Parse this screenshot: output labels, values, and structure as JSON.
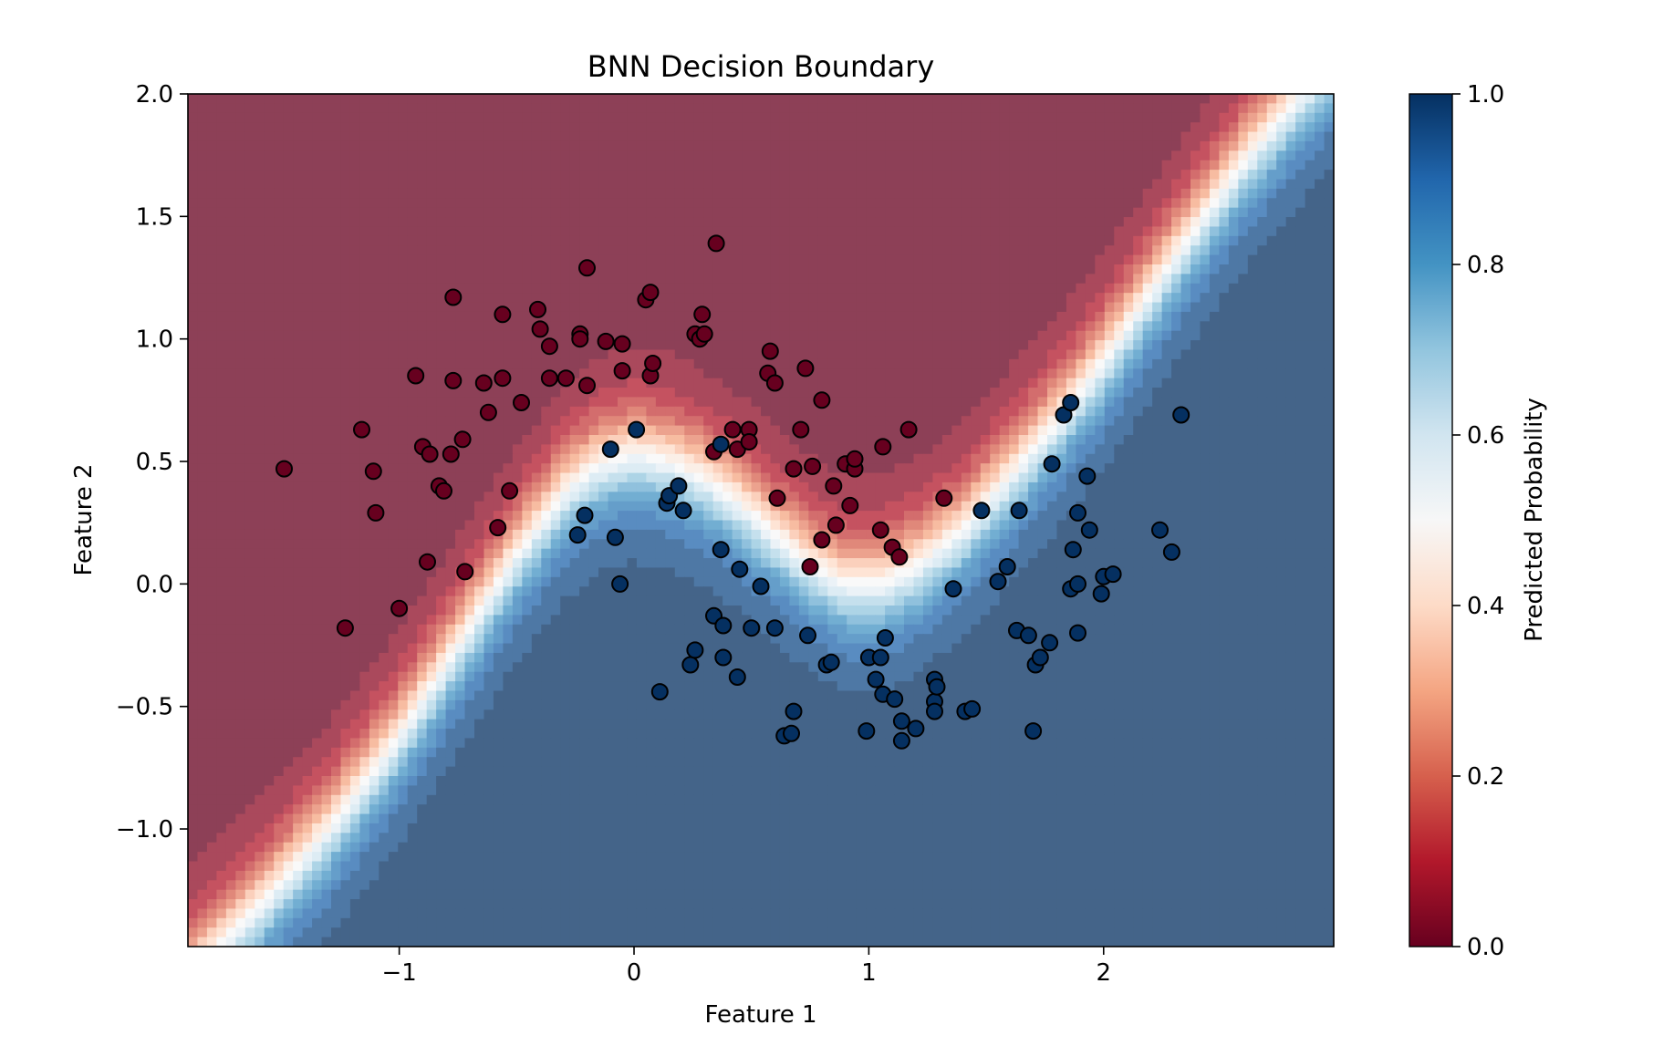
{
  "chart_data": {
    "type": "scatter",
    "title": "BNN Decision Boundary",
    "xlabel": "Feature 1",
    "ylabel": "Feature 2",
    "xlim": [
      -1.9,
      2.98
    ],
    "ylim": [
      -1.48,
      2.0
    ],
    "xticks": [
      -1,
      0,
      1,
      2
    ],
    "xtick_labels": [
      "−1",
      "0",
      "1",
      "2"
    ],
    "yticks": [
      -1.0,
      -0.5,
      0.0,
      0.5,
      1.0,
      1.5,
      2.0
    ],
    "ytick_labels": [
      "−1.0",
      "−0.5",
      "0.0",
      "0.5",
      "1.0",
      "1.5",
      "2.0"
    ],
    "background": "filled probability contour, colormap RdBu (red = 0, blue = 1)",
    "grid": false,
    "colorbar": {
      "label": "Predicted Probability",
      "range": [
        0.0,
        1.0
      ],
      "ticks": [
        0.0,
        0.2,
        0.4,
        0.6,
        0.8,
        1.0
      ],
      "tick_labels": [
        "0.0",
        "0.2",
        "0.4",
        "0.6",
        "0.8",
        "1.0"
      ],
      "colors": [
        "#67001f",
        "#b2182b",
        "#d6604d",
        "#f4a582",
        "#fddbc7",
        "#f7f7f7",
        "#d1e5f0",
        "#92c5de",
        "#4393c3",
        "#2166ac",
        "#053061"
      ]
    },
    "series": [
      {
        "class": 0,
        "color": "#67001f",
        "points": [
          [
            -1.49,
            0.47
          ],
          [
            -1.23,
            -0.18
          ],
          [
            -1.16,
            0.63
          ],
          [
            -1.11,
            0.46
          ],
          [
            -1.1,
            0.29
          ],
          [
            -1.0,
            -0.1
          ],
          [
            -0.93,
            0.85
          ],
          [
            -0.9,
            0.56
          ],
          [
            -0.88,
            0.09
          ],
          [
            -0.87,
            0.53
          ],
          [
            -0.83,
            0.4
          ],
          [
            -0.81,
            0.38
          ],
          [
            -0.78,
            0.53
          ],
          [
            -0.77,
            1.17
          ],
          [
            -0.77,
            0.83
          ],
          [
            -0.72,
            0.05
          ],
          [
            -0.73,
            0.59
          ],
          [
            -0.64,
            0.82
          ],
          [
            -0.62,
            0.7
          ],
          [
            -0.58,
            0.23
          ],
          [
            -0.56,
            1.1
          ],
          [
            -0.56,
            0.84
          ],
          [
            -0.53,
            0.38
          ],
          [
            -0.48,
            0.74
          ],
          [
            -0.41,
            1.12
          ],
          [
            -0.4,
            1.04
          ],
          [
            -0.36,
            0.97
          ],
          [
            -0.36,
            0.84
          ],
          [
            -0.29,
            0.84
          ],
          [
            -0.23,
            1.02
          ],
          [
            -0.23,
            1.0
          ],
          [
            -0.2,
            1.29
          ],
          [
            -0.2,
            0.81
          ],
          [
            -0.12,
            0.99
          ],
          [
            -0.05,
            0.98
          ],
          [
            -0.05,
            0.87
          ],
          [
            0.05,
            1.16
          ],
          [
            0.07,
            1.19
          ],
          [
            0.07,
            0.85
          ],
          [
            0.08,
            0.9
          ],
          [
            0.26,
            1.02
          ],
          [
            0.28,
            1.0
          ],
          [
            0.29,
            1.1
          ],
          [
            0.3,
            1.02
          ],
          [
            0.34,
            0.54
          ],
          [
            0.35,
            1.39
          ],
          [
            0.42,
            0.63
          ],
          [
            0.44,
            0.55
          ],
          [
            0.49,
            0.63
          ],
          [
            0.49,
            0.58
          ],
          [
            0.57,
            0.86
          ],
          [
            0.58,
            0.95
          ],
          [
            0.6,
            0.82
          ],
          [
            0.61,
            0.35
          ],
          [
            0.68,
            0.47
          ],
          [
            0.71,
            0.63
          ],
          [
            0.73,
            0.88
          ],
          [
            0.75,
            0.07
          ],
          [
            0.76,
            0.48
          ],
          [
            0.8,
            0.75
          ],
          [
            0.8,
            0.18
          ],
          [
            0.85,
            0.4
          ],
          [
            0.86,
            0.24
          ],
          [
            0.9,
            0.49
          ],
          [
            0.92,
            0.32
          ],
          [
            0.94,
            0.47
          ],
          [
            0.94,
            0.51
          ],
          [
            1.05,
            0.22
          ],
          [
            1.06,
            0.56
          ],
          [
            1.1,
            0.15
          ],
          [
            1.13,
            0.11
          ],
          [
            1.17,
            0.63
          ],
          [
            1.32,
            0.35
          ]
        ]
      },
      {
        "class": 1,
        "color": "#053061",
        "points": [
          [
            -0.24,
            0.2
          ],
          [
            -0.21,
            0.28
          ],
          [
            -0.1,
            0.55
          ],
          [
            -0.08,
            0.19
          ],
          [
            -0.06,
            0.0
          ],
          [
            0.01,
            0.63
          ],
          [
            0.11,
            -0.44
          ],
          [
            0.14,
            0.33
          ],
          [
            0.15,
            0.36
          ],
          [
            0.19,
            0.4
          ],
          [
            0.21,
            0.3
          ],
          [
            0.24,
            -0.33
          ],
          [
            0.26,
            -0.27
          ],
          [
            0.34,
            -0.13
          ],
          [
            0.37,
            0.57
          ],
          [
            0.38,
            -0.17
          ],
          [
            0.37,
            0.14
          ],
          [
            0.38,
            -0.3
          ],
          [
            0.44,
            -0.38
          ],
          [
            0.45,
            0.06
          ],
          [
            0.5,
            -0.18
          ],
          [
            0.54,
            -0.01
          ],
          [
            0.6,
            -0.18
          ],
          [
            0.64,
            -0.62
          ],
          [
            0.67,
            -0.61
          ],
          [
            0.68,
            -0.52
          ],
          [
            0.74,
            -0.21
          ],
          [
            0.82,
            -0.33
          ],
          [
            0.84,
            -0.32
          ],
          [
            0.99,
            -0.6
          ],
          [
            1.0,
            -0.3
          ],
          [
            1.03,
            -0.39
          ],
          [
            1.05,
            -0.3
          ],
          [
            1.06,
            -0.45
          ],
          [
            1.07,
            -0.22
          ],
          [
            1.11,
            -0.47
          ],
          [
            1.14,
            -0.64
          ],
          [
            1.14,
            -0.56
          ],
          [
            1.2,
            -0.59
          ],
          [
            1.28,
            -0.39
          ],
          [
            1.28,
            -0.48
          ],
          [
            1.29,
            -0.42
          ],
          [
            1.28,
            -0.52
          ],
          [
            1.36,
            -0.02
          ],
          [
            1.41,
            -0.52
          ],
          [
            1.44,
            -0.51
          ],
          [
            1.48,
            0.3
          ],
          [
            1.55,
            0.01
          ],
          [
            1.59,
            0.07
          ],
          [
            1.63,
            -0.19
          ],
          [
            1.64,
            0.3
          ],
          [
            1.68,
            -0.21
          ],
          [
            1.7,
            -0.6
          ],
          [
            1.71,
            -0.33
          ],
          [
            1.73,
            -0.3
          ],
          [
            1.77,
            -0.24
          ],
          [
            1.78,
            0.49
          ],
          [
            1.83,
            0.69
          ],
          [
            1.86,
            0.74
          ],
          [
            1.86,
            -0.02
          ],
          [
            1.87,
            0.14
          ],
          [
            1.89,
            -0.2
          ],
          [
            1.89,
            0.0
          ],
          [
            1.89,
            0.29
          ],
          [
            1.93,
            0.44
          ],
          [
            1.94,
            0.22
          ],
          [
            1.99,
            -0.04
          ],
          [
            2.0,
            0.03
          ],
          [
            2.04,
            0.04
          ],
          [
            2.24,
            0.22
          ],
          [
            2.29,
            0.13
          ],
          [
            2.33,
            0.69
          ]
        ]
      }
    ]
  }
}
